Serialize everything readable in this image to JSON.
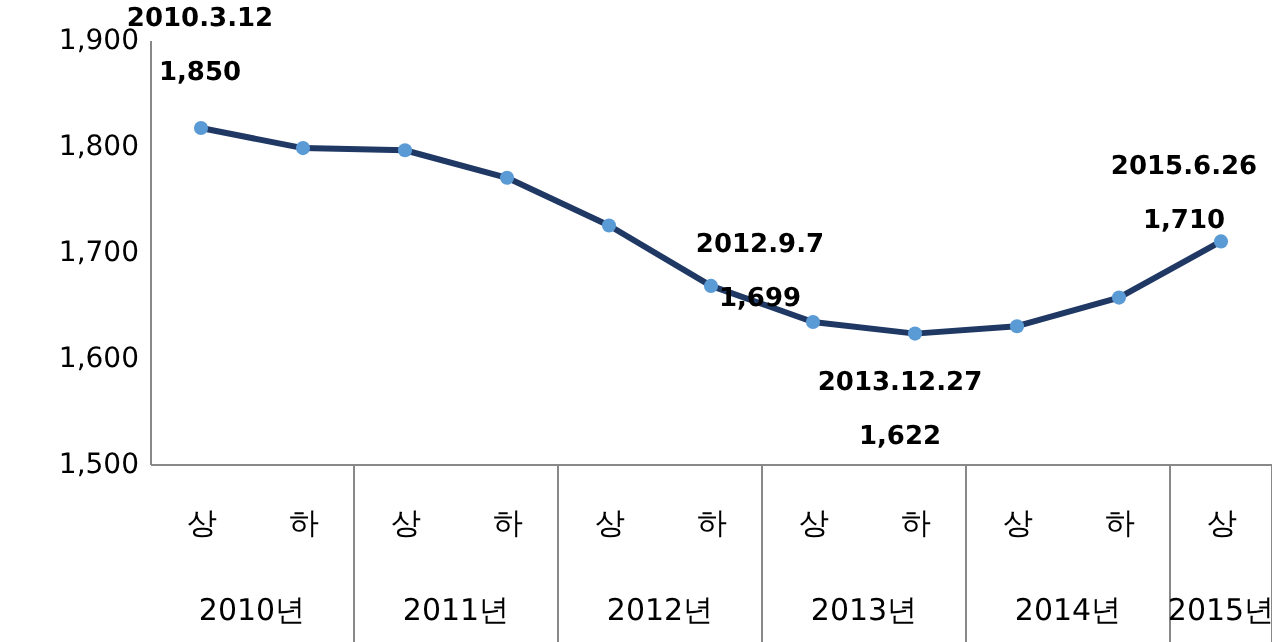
{
  "chart_data": {
    "type": "line",
    "categories": [
      "상",
      "하",
      "상",
      "하",
      "상",
      "하",
      "상",
      "하",
      "상",
      "하",
      "상"
    ],
    "series": [
      {
        "color": "#1f3864",
        "values": [
          1817,
          1798,
          1796,
          1770,
          1725,
          1668,
          1634,
          1623,
          1630,
          1657,
          1710
        ]
      }
    ],
    "ylim": [
      1500,
      1900
    ],
    "yticks": [
      {
        "value": 1500,
        "label": "1,500"
      },
      {
        "value": 1600,
        "label": "1,600"
      },
      {
        "value": 1700,
        "label": "1,700"
      },
      {
        "value": 1800,
        "label": "1,800"
      },
      {
        "value": 1900,
        "label": "1,900"
      }
    ],
    "marker": "circle",
    "line_style": "solid",
    "annotations": [
      "2010.3.12\n1,850",
      "2012.9.7\n1,699",
      "2013.12.27\n1,622",
      "2015.6.26\n1,710",
      "2010년",
      "2011년",
      "2012년",
      "2013년",
      "2014년",
      "2015년"
    ]
  }
}
